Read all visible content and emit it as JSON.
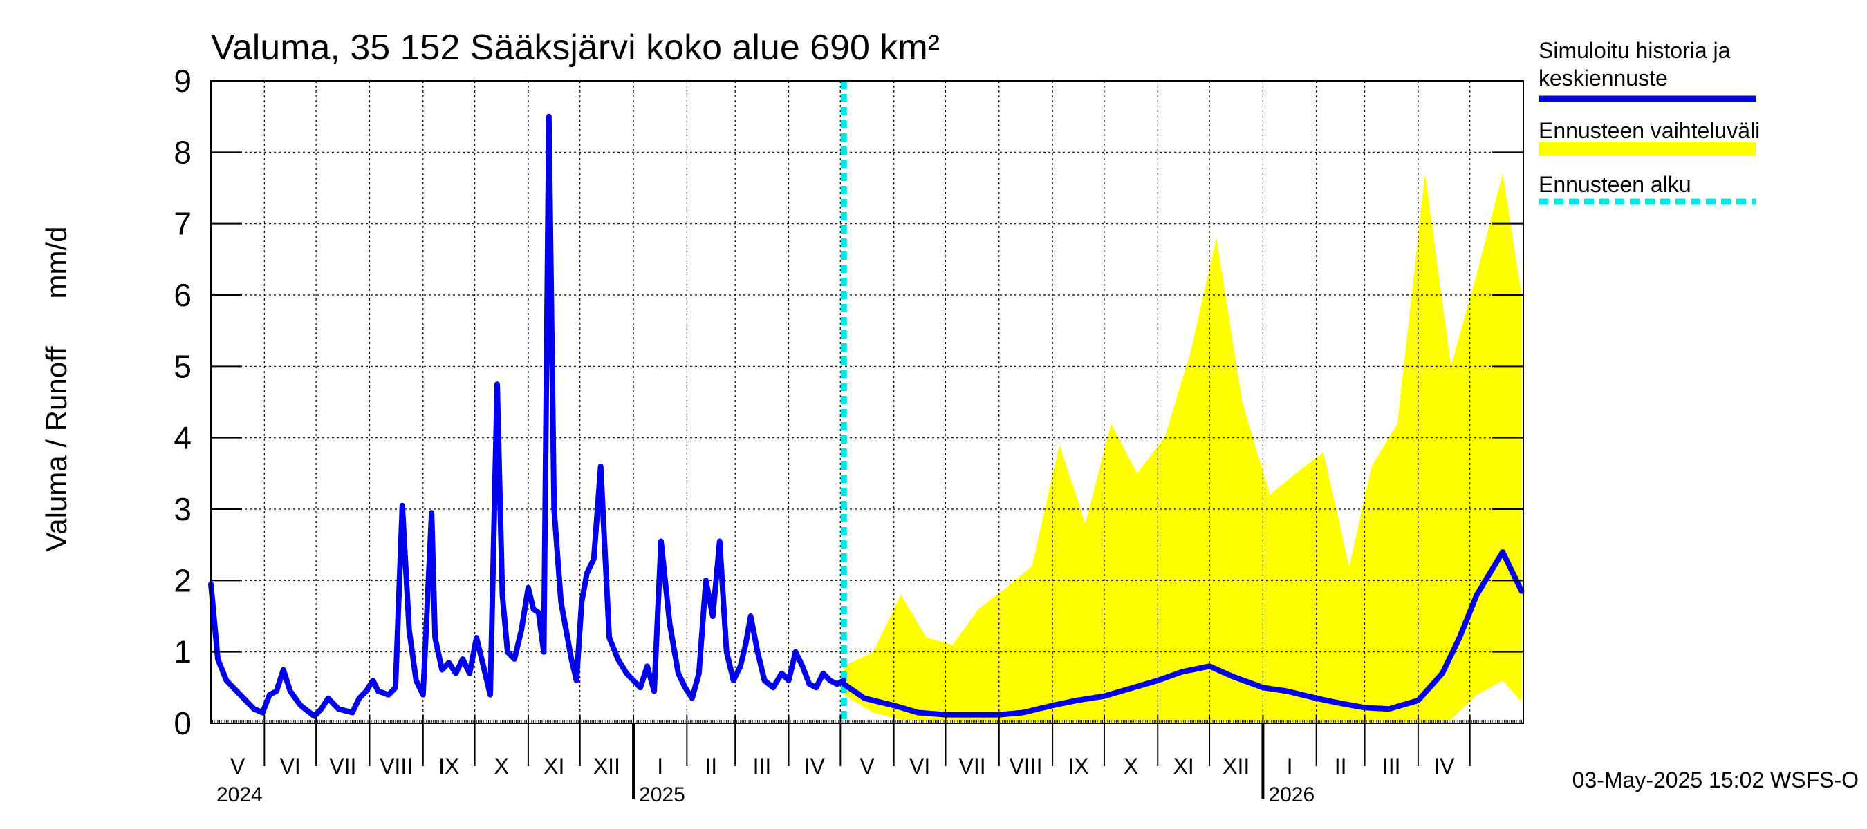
{
  "chart_data": {
    "type": "area",
    "title": "Valuma, 35 152 Sääksjärvi koko alue 690 km²",
    "ylabel_left": "Valuma / Runoff",
    "ylabel_unit": "mm/d",
    "ylim": [
      0,
      9
    ],
    "yticks": [
      "0",
      "1",
      "2",
      "3",
      "4",
      "5",
      "6",
      "7",
      "8",
      "9"
    ],
    "xlim": [
      "2024-05-01",
      "2026-05-31"
    ],
    "month_labels": [
      "V",
      "VI",
      "VII",
      "VIII",
      "IX",
      "X",
      "XI",
      "XII",
      "I",
      "II",
      "III",
      "IV",
      "V",
      "VI",
      "VII",
      "VIII",
      "IX",
      "X",
      "XI",
      "XII",
      "I",
      "II",
      "III",
      "IV"
    ],
    "year_labels": [
      {
        "label": "2024",
        "date": "2024-05-01"
      },
      {
        "label": "2025",
        "date": "2025-01-01"
      },
      {
        "label": "2026",
        "date": "2026-01-01"
      }
    ],
    "forecast_start": "2025-05-03",
    "grid": true,
    "legend_position": "right",
    "legend": [
      {
        "label_line1": "Simuloitu historia ja",
        "label_line2": "keskiennuste",
        "color": "#0000ee",
        "style": "solid"
      },
      {
        "label_line1": "Ennusteen vaihteluväli",
        "label_line2": "",
        "color": "#ffff00",
        "style": "band"
      },
      {
        "label_line1": "Ennusteen alku",
        "label_line2": "",
        "color": "#00e5e5",
        "style": "dashed"
      }
    ],
    "series_history": {
      "x": [
        "2024-05-01",
        "2024-05-05",
        "2024-05-10",
        "2024-05-18",
        "2024-05-26",
        "2024-05-31",
        "2024-06-04",
        "2024-06-08",
        "2024-06-12",
        "2024-06-16",
        "2024-06-22",
        "2024-06-30",
        "2024-07-04",
        "2024-07-08",
        "2024-07-14",
        "2024-07-22",
        "2024-07-26",
        "2024-07-30",
        "2024-08-03",
        "2024-08-06",
        "2024-08-12",
        "2024-08-16",
        "2024-08-20",
        "2024-08-24",
        "2024-08-28",
        "2024-09-01",
        "2024-09-06",
        "2024-09-08",
        "2024-09-12",
        "2024-09-16",
        "2024-09-20",
        "2024-09-24",
        "2024-09-28",
        "2024-10-02",
        "2024-10-06",
        "2024-10-10",
        "2024-10-14",
        "2024-10-17",
        "2024-10-20",
        "2024-10-24",
        "2024-10-28",
        "2024-11-01",
        "2024-11-04",
        "2024-11-07",
        "2024-11-10",
        "2024-11-13",
        "2024-11-16",
        "2024-11-20",
        "2024-11-23",
        "2024-11-26",
        "2024-11-29",
        "2024-12-02",
        "2024-12-05",
        "2024-12-09",
        "2024-12-13",
        "2024-12-18",
        "2024-12-23",
        "2024-12-28",
        "2025-01-01",
        "2025-01-05",
        "2025-01-09",
        "2025-01-13",
        "2025-01-17",
        "2025-01-22",
        "2025-01-27",
        "2025-01-31",
        "2025-02-04",
        "2025-02-08",
        "2025-02-12",
        "2025-02-16",
        "2025-02-20",
        "2025-02-24",
        "2025-02-28",
        "2025-03-04",
        "2025-03-07",
        "2025-03-10",
        "2025-03-14",
        "2025-03-18",
        "2025-03-23",
        "2025-03-28",
        "2025-04-01",
        "2025-04-05",
        "2025-04-09",
        "2025-04-13",
        "2025-04-17",
        "2025-04-21",
        "2025-04-25",
        "2025-04-29",
        "2025-05-03"
      ],
      "y": [
        1.95,
        0.9,
        0.6,
        0.4,
        0.2,
        0.15,
        0.4,
        0.45,
        0.75,
        0.45,
        0.25,
        0.1,
        0.2,
        0.35,
        0.2,
        0.15,
        0.35,
        0.45,
        0.6,
        0.45,
        0.4,
        0.5,
        3.05,
        1.3,
        0.6,
        0.4,
        2.95,
        1.2,
        0.75,
        0.85,
        0.7,
        0.9,
        0.7,
        1.2,
        0.8,
        0.4,
        4.75,
        1.8,
        1.0,
        0.9,
        1.3,
        1.9,
        1.6,
        1.55,
        1.0,
        8.5,
        3.0,
        1.7,
        1.3,
        0.9,
        0.6,
        1.7,
        2.1,
        2.3,
        3.6,
        1.2,
        0.9,
        0.7,
        0.6,
        0.5,
        0.8,
        0.45,
        2.55,
        1.4,
        0.7,
        0.5,
        0.35,
        0.7,
        2.0,
        1.5,
        2.55,
        1.0,
        0.6,
        0.8,
        1.1,
        1.5,
        1.0,
        0.6,
        0.5,
        0.7,
        0.6,
        1.0,
        0.8,
        0.55,
        0.5,
        0.7,
        0.6,
        0.55,
        0.6
      ]
    },
    "series_median_forecast": {
      "x": [
        "2025-05-03",
        "2025-05-15",
        "2025-06-01",
        "2025-06-15",
        "2025-07-01",
        "2025-07-15",
        "2025-08-01",
        "2025-08-15",
        "2025-09-01",
        "2025-09-15",
        "2025-10-01",
        "2025-10-15",
        "2025-11-01",
        "2025-11-15",
        "2025-12-01",
        "2025-12-15",
        "2026-01-01",
        "2026-01-15",
        "2026-02-01",
        "2026-02-15",
        "2026-03-01",
        "2026-03-15",
        "2026-04-01",
        "2026-04-15",
        "2026-04-25",
        "2026-05-05",
        "2026-05-20",
        "2026-05-31"
      ],
      "y": [
        0.55,
        0.35,
        0.25,
        0.15,
        0.12,
        0.12,
        0.12,
        0.15,
        0.25,
        0.32,
        0.38,
        0.48,
        0.6,
        0.72,
        0.8,
        0.65,
        0.5,
        0.45,
        0.35,
        0.28,
        0.22,
        0.2,
        0.32,
        0.7,
        1.2,
        1.8,
        2.4,
        1.85
      ]
    },
    "forecast_band": {
      "x": [
        "2025-05-03",
        "2025-05-20",
        "2025-06-05",
        "2025-06-20",
        "2025-07-05",
        "2025-07-20",
        "2025-08-05",
        "2025-08-20",
        "2025-09-05",
        "2025-09-20",
        "2025-10-05",
        "2025-10-20",
        "2025-11-05",
        "2025-11-20",
        "2025-12-05",
        "2025-12-20",
        "2026-01-05",
        "2026-01-20",
        "2026-02-05",
        "2026-02-20",
        "2026-03-05",
        "2026-03-20",
        "2026-04-05",
        "2026-04-20",
        "2026-05-05",
        "2026-05-20",
        "2026-05-31"
      ],
      "low": [
        0.4,
        0.15,
        0.05,
        0.03,
        0.02,
        0.02,
        0.02,
        0.02,
        0.02,
        0.02,
        0.02,
        0.02,
        0.02,
        0.02,
        0.02,
        0.02,
        0.02,
        0.02,
        0.02,
        0.02,
        0.02,
        0.02,
        0.02,
        0.05,
        0.4,
        0.6,
        0.3
      ],
      "high": [
        0.8,
        1.0,
        1.8,
        1.2,
        1.1,
        1.6,
        1.9,
        2.2,
        3.9,
        2.8,
        4.2,
        3.5,
        4.0,
        5.2,
        6.8,
        4.5,
        3.2,
        3.5,
        3.8,
        2.2,
        3.6,
        4.2,
        7.7,
        5.0,
        6.3,
        7.7,
        6.0
      ]
    },
    "timestamp": "03-May-2025 15:02 WSFS-O",
    "colors": {
      "history_line": "#0000ee",
      "band_fill": "#ffff00",
      "forecast_start": "#00e5e5",
      "grid": "#000000",
      "axis": "#000000"
    }
  }
}
